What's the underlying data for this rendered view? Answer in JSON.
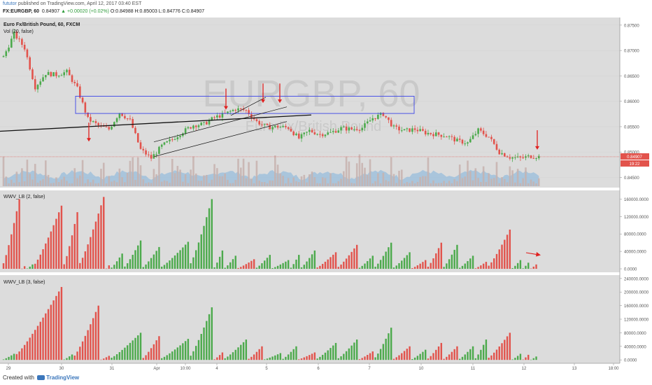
{
  "header": {
    "author": "fututor",
    "published": "published on TradingView.com, April 12, 2017 03:40 EST",
    "symbol": "FX:EURGBP, 60",
    "last": "0.84907",
    "change": "▲ +0.00020 (+0.02%)",
    "ohlc": "O:0.84988 H:0.85003 L:0.84776 C:0.84907"
  },
  "footer": {
    "created_with": "Created with",
    "brand": "TradingView"
  },
  "colors": {
    "panel_bg": "#dcdcdc",
    "separator": "#ffffff",
    "up": "#4caa4c",
    "down": "#e2534c",
    "trend_box": "#3b44e8",
    "trend_black": "#111111",
    "arrow": "#e0201f",
    "price_line": "#e2534c",
    "volume_area": "#7fb3dc"
  },
  "chart_data": [
    {
      "type": "candlestick",
      "title": "Euro Fx/British Pound, 60, FXCM",
      "indicator_label": "Vol (20, false)",
      "watermark": "EURGBP, 60",
      "watermark_sub": "Euro Fx/British Pound",
      "price_axis_ticks": [
        "0.87500",
        "0.87000",
        "0.86500",
        "0.86000",
        "0.85500",
        "0.85000",
        "0.84500"
      ],
      "ylim": [
        0.843,
        0.8765
      ],
      "current_price": "0.84907",
      "countdown": "19:22",
      "x_ticks": [
        "29",
        "30",
        "31",
        "Apr",
        "10:00",
        "4",
        "5",
        "6",
        "7",
        "10",
        "11",
        "12",
        "13",
        "18:00"
      ],
      "path": [
        [
          0,
          0.8687
        ],
        [
          4,
          0.8733
        ],
        [
          8,
          0.8705
        ],
        [
          12,
          0.8628
        ],
        [
          16,
          0.8655
        ],
        [
          20,
          0.8652
        ],
        [
          24,
          0.8658
        ],
        [
          28,
          0.8625
        ],
        [
          32,
          0.8565
        ],
        [
          36,
          0.8552
        ],
        [
          40,
          0.8545
        ],
        [
          44,
          0.8578
        ],
        [
          48,
          0.8562
        ],
        [
          52,
          0.8505
        ],
        [
          56,
          0.8488
        ],
        [
          60,
          0.8512
        ],
        [
          64,
          0.8525
        ],
        [
          68,
          0.854
        ],
        [
          72,
          0.8553
        ],
        [
          76,
          0.8555
        ],
        [
          80,
          0.8568
        ],
        [
          84,
          0.8575
        ],
        [
          88,
          0.8585
        ],
        [
          92,
          0.8582
        ],
        [
          96,
          0.856
        ],
        [
          100,
          0.8549
        ],
        [
          104,
          0.855
        ],
        [
          108,
          0.8548
        ],
        [
          112,
          0.8527
        ],
        [
          116,
          0.8542
        ],
        [
          120,
          0.8535
        ],
        [
          124,
          0.8538
        ],
        [
          128,
          0.8547
        ],
        [
          132,
          0.8545
        ],
        [
          136,
          0.8548
        ],
        [
          140,
          0.8567
        ],
        [
          144,
          0.8575
        ],
        [
          148,
          0.8548
        ],
        [
          152,
          0.8542
        ],
        [
          156,
          0.8545
        ],
        [
          160,
          0.8538
        ],
        [
          164,
          0.8535
        ],
        [
          168,
          0.8532
        ],
        [
          172,
          0.8522
        ],
        [
          176,
          0.8518
        ],
        [
          180,
          0.8543
        ],
        [
          184,
          0.853
        ],
        [
          188,
          0.85
        ],
        [
          192,
          0.849
        ],
        [
          196,
          0.8488
        ],
        [
          200,
          0.8492
        ],
        [
          203,
          0.8491
        ]
      ]
    },
    {
      "type": "bar",
      "title": "WWV_LB (2, false)",
      "axis_ticks": [
        "160000.0000",
        "120000.0000",
        "80000.0000",
        "40000.0000",
        "0.0000"
      ],
      "ylim": [
        -8000,
        180000
      ],
      "waves": [
        [
          0,
          6,
          160000,
          "down"
        ],
        [
          7,
          8,
          6000,
          "down"
        ],
        [
          9,
          11,
          10000,
          "up"
        ],
        [
          12,
          22,
          145000,
          "down"
        ],
        [
          23,
          28,
          130000,
          "down"
        ],
        [
          29,
          38,
          165000,
          "down"
        ],
        [
          39,
          40,
          8000,
          "down"
        ],
        [
          41,
          45,
          35000,
          "up"
        ],
        [
          46,
          52,
          65000,
          "up"
        ],
        [
          53,
          59,
          50000,
          "up"
        ],
        [
          60,
          70,
          62000,
          "up"
        ],
        [
          71,
          79,
          160000,
          "up"
        ],
        [
          80,
          83,
          42000,
          "up"
        ],
        [
          84,
          88,
          30000,
          "up"
        ],
        [
          89,
          95,
          22000,
          "down"
        ],
        [
          96,
          101,
          32000,
          "up"
        ],
        [
          102,
          108,
          20000,
          "up"
        ],
        [
          109,
          112,
          32000,
          "up"
        ],
        [
          113,
          118,
          42000,
          "up"
        ],
        [
          119,
          126,
          38000,
          "down"
        ],
        [
          127,
          134,
          55000,
          "down"
        ],
        [
          135,
          140,
          30000,
          "up"
        ],
        [
          141,
          147,
          60000,
          "up"
        ],
        [
          148,
          154,
          38000,
          "up"
        ],
        [
          155,
          160,
          20000,
          "down"
        ],
        [
          161,
          166,
          60000,
          "down"
        ],
        [
          167,
          172,
          55000,
          "up"
        ],
        [
          173,
          178,
          30000,
          "up"
        ],
        [
          179,
          183,
          16000,
          "down"
        ],
        [
          184,
          192,
          90000,
          "down"
        ],
        [
          193,
          196,
          20000,
          "up"
        ],
        [
          197,
          199,
          14000,
          "up"
        ],
        [
          200,
          202,
          10000,
          "down"
        ]
      ]
    },
    {
      "type": "bar",
      "title": "WWV_LB (3, false)",
      "axis_ticks": [
        "240000.0000",
        "200000.0000",
        "160000.0000",
        "120000.0000",
        "80000.0000",
        "40000.0000",
        "0.0000"
      ],
      "ylim": [
        -10000,
        250000
      ],
      "waves": [
        [
          0,
          4,
          18000,
          "up"
        ],
        [
          5,
          22,
          215000,
          "down"
        ],
        [
          23,
          26,
          16000,
          "up"
        ],
        [
          27,
          36,
          160000,
          "down"
        ],
        [
          37,
          40,
          12000,
          "down"
        ],
        [
          41,
          52,
          80000,
          "up"
        ],
        [
          53,
          59,
          70000,
          "down"
        ],
        [
          60,
          70,
          62000,
          "up"
        ],
        [
          71,
          79,
          155000,
          "up"
        ],
        [
          80,
          83,
          22000,
          "down"
        ],
        [
          84,
          92,
          60000,
          "up"
        ],
        [
          93,
          98,
          40000,
          "down"
        ],
        [
          99,
          105,
          20000,
          "up"
        ],
        [
          106,
          111,
          40000,
          "up"
        ],
        [
          112,
          118,
          22000,
          "down"
        ],
        [
          119,
          126,
          50000,
          "up"
        ],
        [
          127,
          134,
          60000,
          "up"
        ],
        [
          135,
          140,
          25000,
          "down"
        ],
        [
          141,
          147,
          95000,
          "up"
        ],
        [
          148,
          154,
          40000,
          "down"
        ],
        [
          155,
          160,
          30000,
          "up"
        ],
        [
          161,
          166,
          50000,
          "down"
        ],
        [
          167,
          172,
          40000,
          "down"
        ],
        [
          173,
          178,
          40000,
          "up"
        ],
        [
          179,
          183,
          60000,
          "up"
        ],
        [
          184,
          192,
          80000,
          "down"
        ],
        [
          193,
          196,
          18000,
          "up"
        ],
        [
          197,
          199,
          15000,
          "down"
        ],
        [
          200,
          202,
          10000,
          "up"
        ]
      ]
    }
  ]
}
